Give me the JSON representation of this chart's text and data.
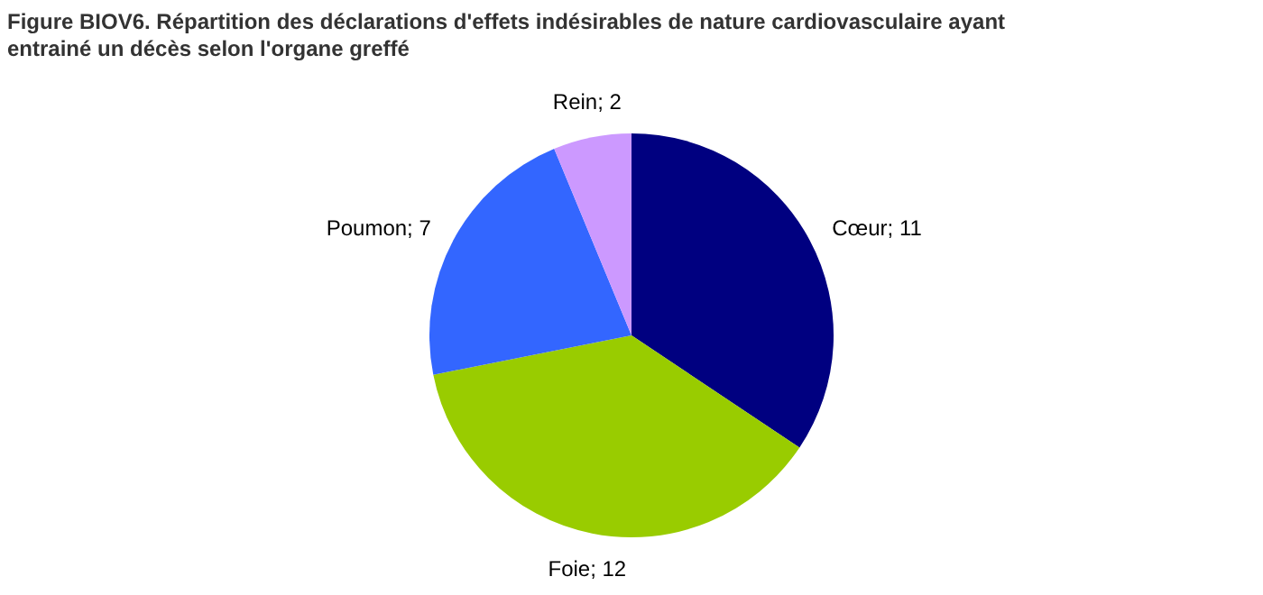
{
  "chart_data": {
    "type": "pie",
    "title": "Figure BIOV6. Répartition des déclarations d'effets indésirables de nature cardiovasculaire ayant entrainé un décès selon l'organe greffé",
    "categories": [
      "Cœur",
      "Foie",
      "Poumon",
      "Rein"
    ],
    "values": [
      11,
      12,
      7,
      2
    ],
    "colors": [
      "#000080",
      "#99cc00",
      "#3366ff",
      "#cc99ff"
    ],
    "value_labels": [
      "; 11",
      "; 12",
      "; 7",
      "; 2"
    ]
  }
}
